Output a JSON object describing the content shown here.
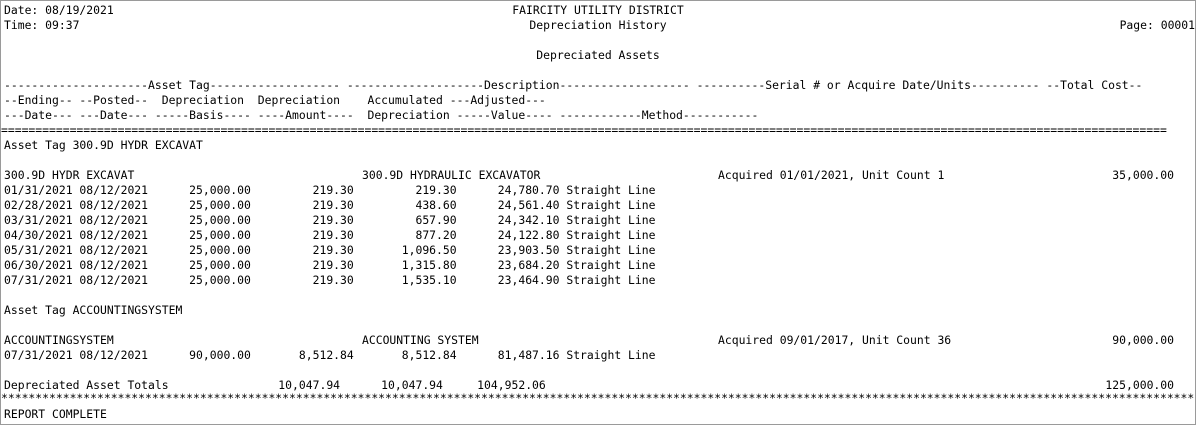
{
  "header": {
    "date": "Date: 08/19/2021",
    "time": "Time: 09:37",
    "org": "FAIRCITY UTILITY DISTRICT",
    "report_title": "Depreciation History",
    "page": "Page: 00001",
    "subtitle": "Depreciated Assets"
  },
  "columns": {
    "line1": "---------------------Asset Tag------------------- --------------------Description------------------- ----------Serial # or Acquire Date/Units---------- --Total Cost--",
    "line2": "--Ending-- --Posted--  Depreciation  Depreciation    Accumulated ---Adjusted---",
    "line3": "---Date--- ---Date--- -----Basis---- ----Amount----  Depreciation -----Value---- ------------Method-----------"
  },
  "separator_double": "==========================================================================================================================================================================",
  "separator_star": "******************************************************************************************************************************************************************************",
  "groups": [
    {
      "heading": "Asset Tag 300.9D HYDR EXCAVAT",
      "asset": {
        "tag": "300.9D HYDR EXCAVAT",
        "description": "300.9D HYDRAULIC EXCAVATOR",
        "acquired": "Acquired 01/01/2021, Unit Count 1",
        "total_cost": "35,000.00"
      },
      "rows": [
        {
          "text": "01/31/2021 08/12/2021      25,000.00         219.30         219.30      24,780.70 Straight Line"
        },
        {
          "text": "02/28/2021 08/12/2021      25,000.00         219.30         438.60      24,561.40 Straight Line"
        },
        {
          "text": "03/31/2021 08/12/2021      25,000.00         219.30         657.90      24,342.10 Straight Line"
        },
        {
          "text": "04/30/2021 08/12/2021      25,000.00         219.30         877.20      24,122.80 Straight Line"
        },
        {
          "text": "05/31/2021 08/12/2021      25,000.00         219.30       1,096.50      23,903.50 Straight Line"
        },
        {
          "text": "06/30/2021 08/12/2021      25,000.00         219.30       1,315.80      23,684.20 Straight Line"
        },
        {
          "text": "07/31/2021 08/12/2021      25,000.00         219.30       1,535.10      23,464.90 Straight Line"
        }
      ]
    },
    {
      "heading": "Asset Tag ACCOUNTINGSYSTEM",
      "asset": {
        "tag": "ACCOUNTINGSYSTEM",
        "description": "ACCOUNTING SYSTEM",
        "acquired": "Acquired 09/01/2017, Unit Count 36",
        "total_cost": "90,000.00"
      },
      "rows": [
        {
          "text": "07/31/2021 08/12/2021      90,000.00       8,512.84       8,512.84      81,487.16 Straight Line"
        }
      ]
    }
  ],
  "totals": {
    "text": "Depreciated Asset Totals                10,047.94      10,047.94     104,952.06",
    "total_cost": "125,000.00"
  },
  "footer": "REPORT COMPLETE"
}
